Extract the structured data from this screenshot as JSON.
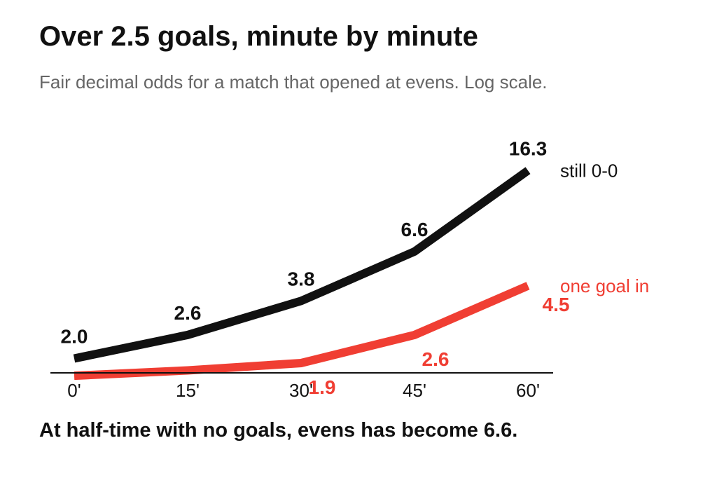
{
  "title": "Over 2.5 goals, minute by minute",
  "subtitle": "Fair decimal odds for a match that opened at evens. Log scale.",
  "takeaway": "At half-time with no goals, evens has become 6.6.",
  "chart_data": {
    "type": "line",
    "log_scale_y": true,
    "categories": [
      "0'",
      "15'",
      "30'",
      "45'",
      "60'"
    ],
    "ylim": [
      1.6,
      22
    ],
    "series": [
      {
        "name": "still 0-0",
        "color": "#111111",
        "values": [
          2.0,
          2.6,
          3.8,
          6.6,
          16.3
        ],
        "labels": [
          "2.0",
          "2.6",
          "3.8",
          "6.6",
          "16.3"
        ],
        "labeled": [
          true,
          true,
          true,
          true,
          true
        ]
      },
      {
        "name": "one goal in",
        "color": "#f03e33",
        "values": [
          1.65,
          1.75,
          1.9,
          2.6,
          4.5
        ],
        "labels": [
          "",
          "",
          "1.9",
          "2.6",
          "4.5"
        ],
        "labeled": [
          false,
          false,
          true,
          true,
          true
        ]
      }
    ]
  }
}
